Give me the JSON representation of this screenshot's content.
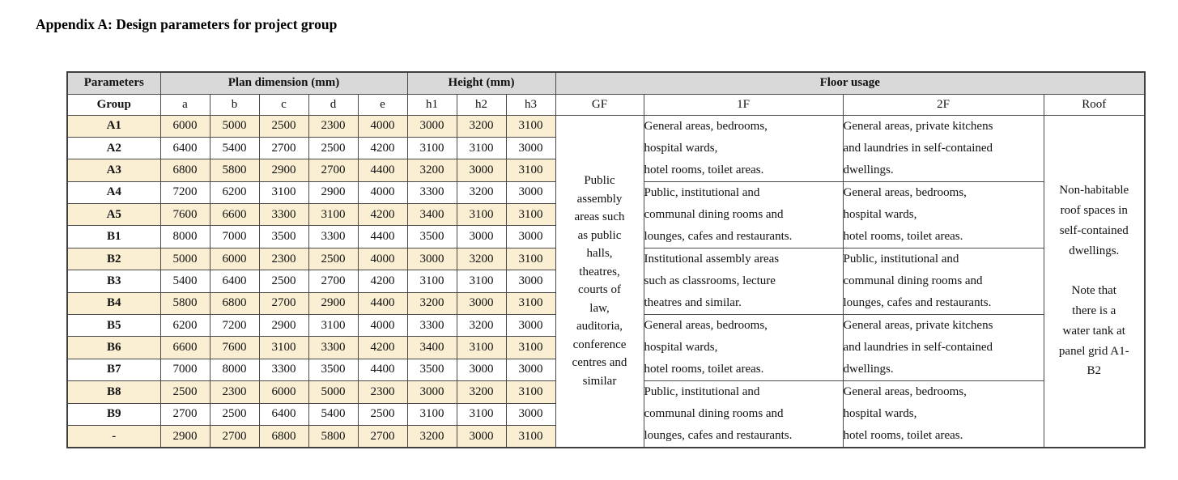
{
  "title": "Appendix A: Design parameters for project group",
  "table": {
    "header": {
      "parameters": "Parameters",
      "plan_dimension": "Plan dimension (mm)",
      "height": "Height (mm)",
      "floor_usage": "Floor usage",
      "group": "Group",
      "plan_cols": {
        "a": "a",
        "b": "b",
        "c": "c",
        "d": "d",
        "e": "e"
      },
      "height_cols": {
        "h1": "h1",
        "h2": "h2",
        "h3": "h3"
      },
      "floor_cols": {
        "gf": "GF",
        "f1": "1F",
        "f2": "2F",
        "roof": "Roof"
      }
    },
    "rows": [
      {
        "group": "A1",
        "values": [
          "6000",
          "5000",
          "2500",
          "2300",
          "4000",
          "3000",
          "3200",
          "3100"
        ],
        "shaded": true
      },
      {
        "group": "A2",
        "values": [
          "6400",
          "5400",
          "2700",
          "2500",
          "4200",
          "3100",
          "3100",
          "3000"
        ],
        "shaded": false
      },
      {
        "group": "A3",
        "values": [
          "6800",
          "5800",
          "2900",
          "2700",
          "4400",
          "3200",
          "3000",
          "3100"
        ],
        "shaded": true
      },
      {
        "group": "A4",
        "values": [
          "7200",
          "6200",
          "3100",
          "2900",
          "4000",
          "3300",
          "3200",
          "3000"
        ],
        "shaded": false
      },
      {
        "group": "A5",
        "values": [
          "7600",
          "6600",
          "3300",
          "3100",
          "4200",
          "3400",
          "3100",
          "3100"
        ],
        "shaded": true
      },
      {
        "group": "B1",
        "values": [
          "8000",
          "7000",
          "3500",
          "3300",
          "4400",
          "3500",
          "3000",
          "3000"
        ],
        "shaded": false
      },
      {
        "group": "B2",
        "values": [
          "5000",
          "6000",
          "2300",
          "2500",
          "4000",
          "3000",
          "3200",
          "3100"
        ],
        "shaded": true
      },
      {
        "group": "B3",
        "values": [
          "5400",
          "6400",
          "2500",
          "2700",
          "4200",
          "3100",
          "3100",
          "3000"
        ],
        "shaded": false
      },
      {
        "group": "B4",
        "values": [
          "5800",
          "6800",
          "2700",
          "2900",
          "4400",
          "3200",
          "3000",
          "3100"
        ],
        "shaded": true
      },
      {
        "group": "B5",
        "values": [
          "6200",
          "7200",
          "2900",
          "3100",
          "4000",
          "3300",
          "3200",
          "3000"
        ],
        "shaded": false
      },
      {
        "group": "B6",
        "values": [
          "6600",
          "7600",
          "3100",
          "3300",
          "4200",
          "3400",
          "3100",
          "3100"
        ],
        "shaded": true
      },
      {
        "group": "B7",
        "values": [
          "7000",
          "8000",
          "3300",
          "3500",
          "4400",
          "3500",
          "3000",
          "3000"
        ],
        "shaded": false
      },
      {
        "group": "B8",
        "values": [
          "2500",
          "2300",
          "6000",
          "5000",
          "2300",
          "3000",
          "3200",
          "3100"
        ],
        "shaded": true
      },
      {
        "group": "B9",
        "values": [
          "2700",
          "2500",
          "6400",
          "5400",
          "2500",
          "3100",
          "3100",
          "3000"
        ],
        "shaded": false
      },
      {
        "group": "-",
        "values": [
          "2900",
          "2700",
          "6800",
          "5800",
          "2700",
          "3200",
          "3000",
          "3100"
        ],
        "shaded": true
      }
    ],
    "gf_text": "Public\nassembly\nareas such\nas public\nhalls,\ntheatres,\ncourts of\nlaw,\nauditoria,\nconference\ncentres and\nsimilar",
    "usage_groups": [
      {
        "f1": "General areas, bedrooms,\nhospital wards,\nhotel rooms, toilet areas.",
        "f2": "General areas, private kitchens\nand laundries in self-contained\ndwellings."
      },
      {
        "f1": "Public, institutional and\ncommunal dining rooms and\nlounges, cafes and restaurants.",
        "f2": "General areas, bedrooms,\nhospital wards,\nhotel rooms, toilet areas."
      },
      {
        "f1": "Institutional assembly areas\nsuch as classrooms, lecture\ntheatres and similar.",
        "f2": "Public, institutional and\ncommunal dining rooms and\nlounges, cafes and restaurants."
      },
      {
        "f1": "General areas, bedrooms,\nhospital wards,\nhotel rooms, toilet areas.",
        "f2": "General areas, private kitchens\nand laundries in self-contained\ndwellings."
      },
      {
        "f1": "Public, institutional and\ncommunal dining rooms and\nlounges, cafes and restaurants.",
        "f2": "General areas, bedrooms,\nhospital wards,\nhotel rooms, toilet areas."
      }
    ],
    "roof_text_1": "Non-habitable\nroof spaces in\nself-contained\ndwellings.",
    "roof_text_2": "Note that\nthere is a\nwater tank at\npanel grid A1-\nB2"
  },
  "colors": {
    "header_gray": "#d9d9d9",
    "row_shaded": "#faeed3",
    "border": "#4a4a4a",
    "text": "#111111"
  }
}
